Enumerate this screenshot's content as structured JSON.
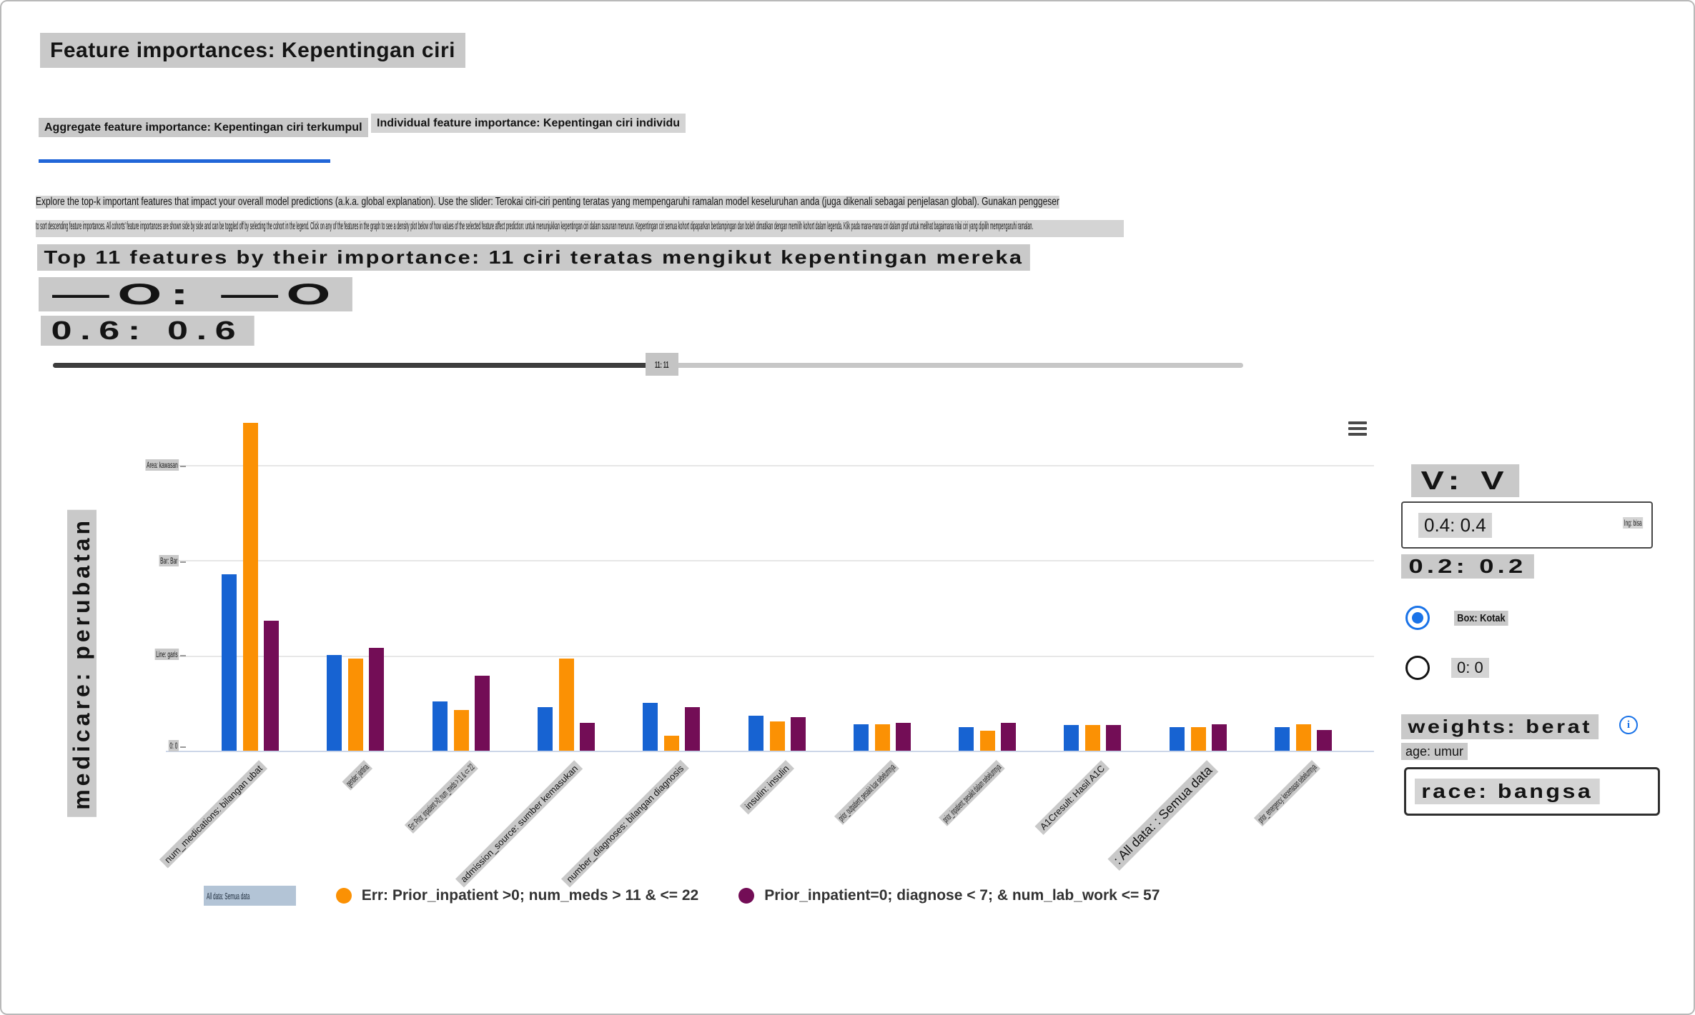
{
  "page": {
    "title": "Feature importances: Kepentingan ciri"
  },
  "tabs": [
    {
      "label": "Aggregate feature importance: Kepentingan ciri terkumpul",
      "active": true
    },
    {
      "label": "Individual feature importance: Kepentingan ciri individu",
      "active": false
    }
  ],
  "description": {
    "line1": "Explore the top-k important features that impact your overall model predictions (a.k.a. global explanation). Use the slider: Terokai ciri-ciri penting teratas yang mempengaruhi ramalan model keseluruhan anda (juga dikenali sebagai penjelasan global). Gunakan penggeser",
    "line2": "to sort descending feature importances. All cohorts' feature importances are shown side by side and can be toggled off by selecting the cohort in the legend. Click on any of the features in the graph to see a density plot below of how values of the selected feature affect prediction: untuk menunjukkan kepentingan ciri dalam susunan menurun. Kepentingan ciri semua kohort dipaparkan berdampingan dan boleh dimatikan dengan memilih kohort dalam legenda. Klik pada mana-mana ciri dalam graf untuk melihat bagaimana nilai ciri yang dipilih mempengaruhi ramalan."
  },
  "topk": {
    "heading": "Top 11 features by their importance: 11 ciri teratas mengikut kepentingan mereka",
    "range_label": "—O: —O",
    "value_label": "0.6: 0.6",
    "slider_value": "11: 11"
  },
  "chart_data": {
    "type": "bar",
    "title": "Top 11 features by their importance: 11 ciri teratas mengikut kepentingan mereka",
    "ylabel": "medicare: perubatan",
    "xlabel": "",
    "ylim": [
      0,
      0.37
    ],
    "grid": true,
    "gridline_values": [
      0.1,
      0.2,
      0.3
    ],
    "y_tick_labels_top_to_bottom": [
      "Area: kawasan",
      "Bar: Bar",
      "Line: garis",
      "0: 0"
    ],
    "legend_position": "bottom",
    "categories": [
      {
        "label": "num_medications: bilangan ubat",
        "style": "normal"
      },
      {
        "label": "gender: jantina",
        "style": "compressed"
      },
      {
        "label": "Err: Prior_inpatient >0; num_meds > 11 & <= 22",
        "style": "compressed"
      },
      {
        "label": "admission_source: sumber kemasukan",
        "style": "normal"
      },
      {
        "label": "number_diagnoses: bilangan diagnosis",
        "style": "normal"
      },
      {
        "label": "insulin: insulin",
        "style": "normal"
      },
      {
        "label": "prior_outpatient: pesakit luar sebelumnya",
        "style": "compressed"
      },
      {
        "label": "prior_inpatient: pesakit dalam sebelumnya",
        "style": "compressed"
      },
      {
        "label": "A1Cresult: Hasil A1C",
        "style": "normal"
      },
      {
        "label": ": All data: : Semua data",
        "style": "large"
      },
      {
        "label": "prior_emergency: kecemasan sebelumnya",
        "style": "compressed"
      }
    ],
    "series": [
      {
        "name": "All data: Semua data",
        "color": "#1763d2",
        "values": [
          0.185,
          0.1,
          0.052,
          0.046,
          0.05,
          0.037,
          0.028,
          0.025,
          0.027,
          0.025,
          0.025
        ]
      },
      {
        "name": "Err: Prior_inpatient >0; num_meds > 11 & <= 22",
        "color": "#fb9104",
        "values": [
          0.344,
          0.097,
          0.043,
          0.097,
          0.016,
          0.031,
          0.028,
          0.021,
          0.027,
          0.025,
          0.028
        ]
      },
      {
        "name": "Prior_inpatient=0; diagnose < 7; & num_lab_work <= 57",
        "color": "#730d56",
        "values": [
          0.136,
          0.108,
          0.079,
          0.029,
          0.046,
          0.035,
          0.029,
          0.029,
          0.027,
          0.028,
          0.022
        ]
      }
    ]
  },
  "legend": [
    {
      "label": "All data: Semua data",
      "color": "#1763d2",
      "dot": false,
      "selected": true
    },
    {
      "label": "Err: Prior_inpatient >0; num_meds > 11 & <= 22",
      "color": "#fb9104",
      "dot": true,
      "selected": false
    },
    {
      "label": "Prior_inpatient=0; diagnose < 7; & num_lab_work <= 57",
      "color": "#730d56",
      "dot": true,
      "selected": false
    }
  ],
  "side_panel": {
    "header": "V: V",
    "dropdown_value": "0.4: 0.4",
    "dropdown_hint": "Ing: bisa",
    "subvalue": "0.2: 0.2",
    "radio_options": [
      {
        "label": "Box: Kotak",
        "selected": true
      },
      {
        "label": "0: 0",
        "selected": false
      }
    ],
    "weights_label": "weights: berat",
    "age_label": "age: umur",
    "race_value": "race: bangsa"
  },
  "colors": {
    "accent_blue": "#1a73e8",
    "tab_underline": "#2166d8",
    "series_blue": "#1763d2",
    "series_orange": "#fb9104",
    "series_purple": "#730d56",
    "highlight_gray": "#c9c9c9"
  }
}
